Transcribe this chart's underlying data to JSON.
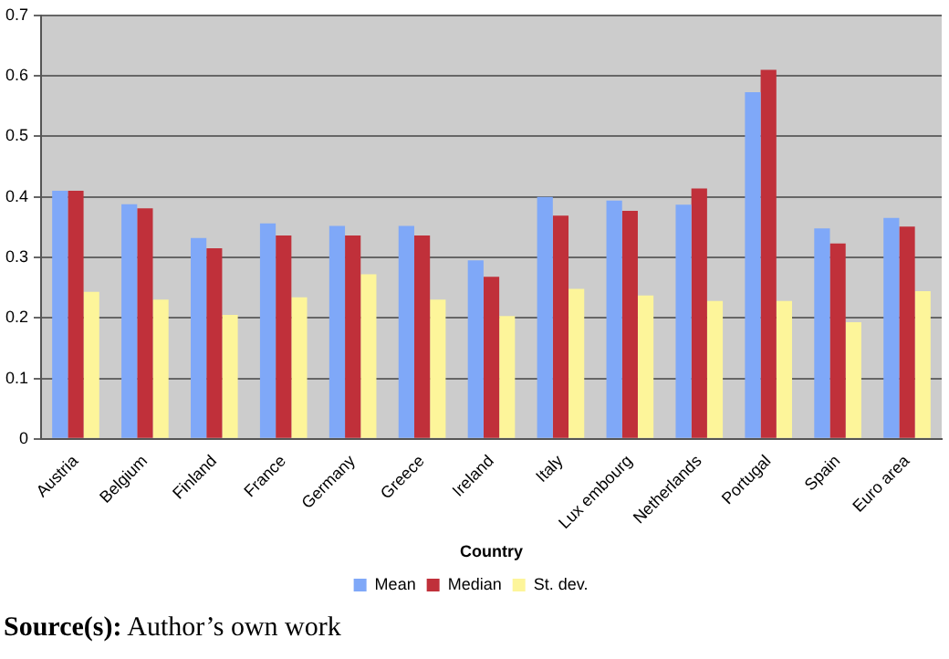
{
  "chart_data": {
    "type": "bar",
    "xlabel": "Country",
    "categories": [
      "Austria",
      "Belgium",
      "Finland",
      "France",
      "Germany",
      "Greece",
      "Ireland",
      "Italy",
      "Lux embourg",
      "Netherlands",
      "Portugal",
      "Spain",
      "Euro area"
    ],
    "series": [
      {
        "name": "Mean",
        "color": "#7fa8f8",
        "values": [
          0.41,
          0.388,
          0.332,
          0.356,
          0.352,
          0.352,
          0.295,
          0.4,
          0.394,
          0.387,
          0.573,
          0.348,
          0.365
        ]
      },
      {
        "name": "Median",
        "color": "#c0303a",
        "values": [
          0.41,
          0.381,
          0.315,
          0.336,
          0.336,
          0.336,
          0.268,
          0.369,
          0.377,
          0.414,
          0.61,
          0.323,
          0.351
        ]
      },
      {
        "name": "St. dev.",
        "color": "#fdf59a",
        "values": [
          0.243,
          0.23,
          0.205,
          0.234,
          0.272,
          0.23,
          0.203,
          0.248,
          0.237,
          0.228,
          0.228,
          0.193,
          0.244
        ]
      }
    ],
    "ylim": [
      0,
      0.7
    ],
    "yticks": [
      0,
      0.1,
      0.2,
      0.3,
      0.4,
      0.5,
      0.6,
      0.7
    ],
    "grid": "y",
    "legend": "bottom",
    "annotations": [
      "Source(s): Author’s own work"
    ]
  }
}
